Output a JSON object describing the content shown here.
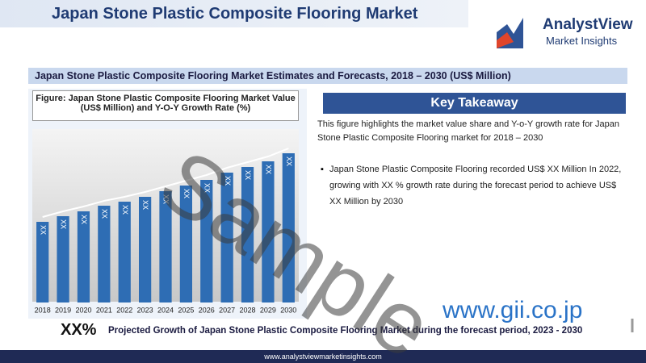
{
  "header": {
    "title": "Japan Stone Plastic Composite Flooring Market",
    "logo_name": "AnalystView",
    "logo_tagline": "Market Insights"
  },
  "banner": "Japan Stone Plastic Composite Flooring Market Estimates and Forecasts, 2018 – 2030 (US$ Million)",
  "chart_data": {
    "type": "bar",
    "title": "Figure: Japan Stone Plastic Composite Flooring Market Value (US$ Million) and Y-O-Y Growth Rate (%)",
    "categories": [
      "2018",
      "2019",
      "2020",
      "2021",
      "2022",
      "2023",
      "2024",
      "2025",
      "2026",
      "2027",
      "2028",
      "2029",
      "2030"
    ],
    "values": [
      100,
      107,
      113,
      120,
      125,
      131,
      138,
      145,
      152,
      161,
      168,
      175,
      185
    ],
    "value_labels": [
      "XX",
      "XX",
      "XX",
      "XX",
      "XX",
      "XX",
      "XX",
      "XX",
      "XX",
      "XX",
      "XX",
      "XX",
      "XX"
    ],
    "color": "#2e6db4",
    "ylim": [
      0,
      200
    ]
  },
  "takeaway": {
    "title": "Key Takeaway",
    "text": "This figure highlights the market value share and Y-o-Y growth rate for Japan Stone Plastic Composite Flooring market for 2018 – 2030",
    "bullet": "Japan Stone Plastic Composite Flooring recorded US$ XX Million In 2022, growing with XX % growth rate during the forecast period to achieve US$ XX Million by 2030"
  },
  "projection": {
    "value": "XX%",
    "text": "Projected Growth of Japan Stone Plastic Composite Flooring Market during the forecast period, 2023 - 2030"
  },
  "footer": "www.analystviewmarketinsights.com",
  "watermark": "Sample",
  "source_site": "www.gii.co.jp"
}
